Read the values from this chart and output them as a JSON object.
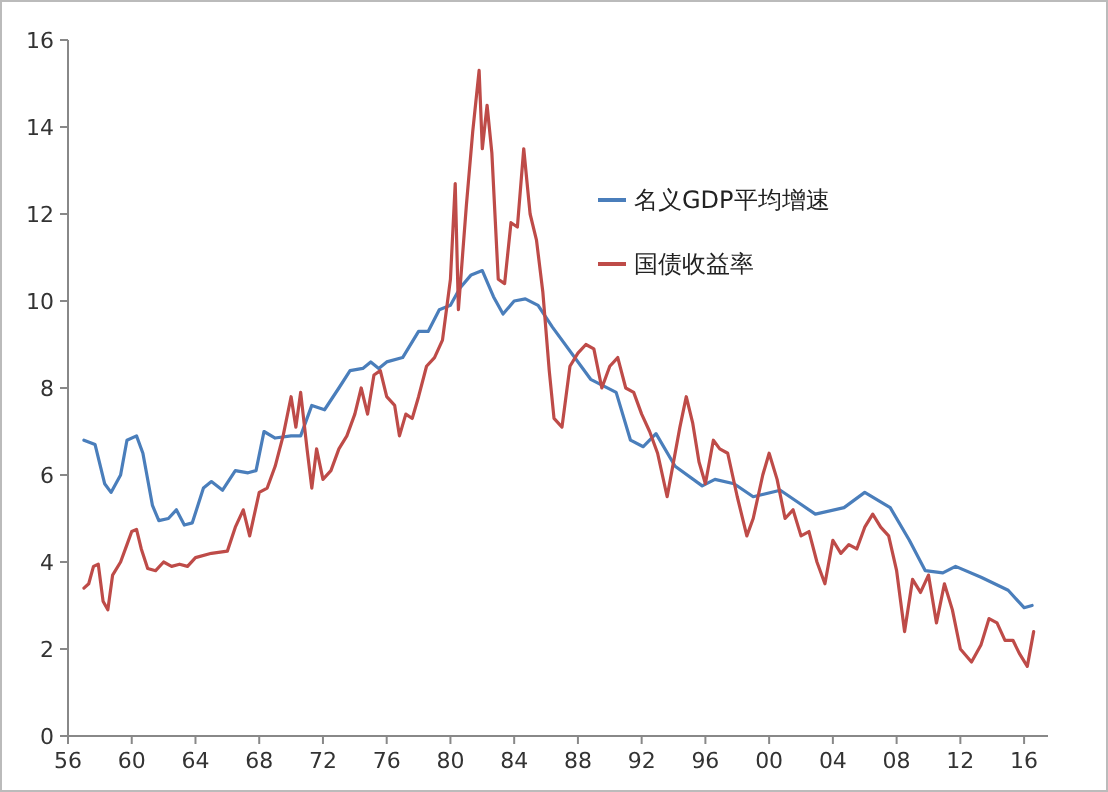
{
  "chart_data": {
    "type": "line",
    "xlim": [
      1956,
      2017.5
    ],
    "ylim": [
      0,
      16
    ],
    "yticks": [
      0,
      2,
      4,
      6,
      8,
      10,
      12,
      14,
      16
    ],
    "xticks": [
      {
        "value": 1956,
        "label": "56"
      },
      {
        "value": 1960,
        "label": "60"
      },
      {
        "value": 1964,
        "label": "64"
      },
      {
        "value": 1968,
        "label": "68"
      },
      {
        "value": 1972,
        "label": "72"
      },
      {
        "value": 1976,
        "label": "76"
      },
      {
        "value": 1980,
        "label": "80"
      },
      {
        "value": 1984,
        "label": "84"
      },
      {
        "value": 1988,
        "label": "88"
      },
      {
        "value": 1992,
        "label": "92"
      },
      {
        "value": 1996,
        "label": "96"
      },
      {
        "value": 2000,
        "label": "00"
      },
      {
        "value": 2004,
        "label": "04"
      },
      {
        "value": 2008,
        "label": "08"
      },
      {
        "value": 2012,
        "label": "12"
      },
      {
        "value": 2016,
        "label": "16"
      }
    ],
    "grid": false,
    "legend": "top right",
    "marker": "none",
    "line_style": "solid",
    "series": [
      {
        "name": "名义GDP平均增速",
        "color": "#4a7ebb",
        "x": [
          1957,
          1957.7,
          1958.3,
          1958.7,
          1959.3,
          1959.7,
          1960.3,
          1960.7,
          1961.3,
          1961.7,
          1962.3,
          1962.8,
          1963.3,
          1963.8,
          1964.5,
          1965,
          1965.7,
          1966.5,
          1967.3,
          1967.8,
          1968.3,
          1969,
          1970,
          1970.6,
          1971.3,
          1972.1,
          1973,
          1973.7,
          1974.5,
          1975,
          1975.5,
          1976,
          1977,
          1978,
          1978.6,
          1979.3,
          1980,
          1980.6,
          1981.3,
          1982,
          1982.7,
          1983.3,
          1984,
          1984.7,
          1985.5,
          1986.4,
          1988.8,
          1990.4,
          1991.3,
          1992.1,
          1992.9,
          1994.1,
          1995.8,
          1996.6,
          1997.8,
          1999,
          2000.7,
          2001.9,
          2002.9,
          2004.7,
          2006,
          2007.6,
          2008.8,
          2009.8,
          2010.9,
          2011.7,
          2013.3,
          2015,
          2016,
          2016.5
        ],
        "values": [
          6.8,
          6.7,
          5.8,
          5.6,
          6.0,
          6.8,
          6.9,
          6.5,
          5.3,
          4.95,
          5.0,
          5.2,
          4.85,
          4.9,
          5.7,
          5.85,
          5.65,
          6.1,
          6.05,
          6.1,
          7.0,
          6.85,
          6.9,
          6.9,
          7.6,
          7.5,
          8.0,
          8.4,
          8.45,
          8.6,
          8.45,
          8.6,
          8.7,
          9.3,
          9.3,
          9.8,
          9.9,
          10.3,
          10.6,
          10.7,
          10.1,
          9.7,
          10.0,
          10.05,
          9.9,
          9.4,
          8.2,
          7.9,
          6.8,
          6.65,
          6.95,
          6.2,
          5.75,
          5.9,
          5.8,
          5.5,
          5.65,
          5.35,
          5.1,
          5.25,
          5.6,
          5.25,
          4.5,
          3.8,
          3.75,
          3.9,
          3.65,
          3.35,
          2.95,
          3.0
        ]
      },
      {
        "name": "国债收益率",
        "color": "#be4b48",
        "x": [
          1957,
          1957.3,
          1957.6,
          1957.9,
          1958.2,
          1958.5,
          1958.8,
          1959.3,
          1959.7,
          1960,
          1960.3,
          1960.6,
          1961,
          1961.5,
          1962,
          1962.5,
          1963,
          1963.5,
          1964,
          1965,
          1966,
          1966.5,
          1967,
          1967.4,
          1968,
          1968.5,
          1969,
          1969.5,
          1970,
          1970.3,
          1970.6,
          1971,
          1971.3,
          1971.6,
          1972,
          1972.5,
          1973,
          1973.5,
          1974,
          1974.4,
          1974.8,
          1975.2,
          1975.6,
          1976,
          1976.5,
          1976.8,
          1977.2,
          1977.6,
          1978,
          1978.5,
          1979,
          1979.5,
          1980,
          1980.3,
          1980.5,
          1981,
          1981.4,
          1981.8,
          1982,
          1982.3,
          1982.6,
          1983,
          1983.4,
          1983.8,
          1984.2,
          1984.6,
          1985,
          1985.4,
          1985.8,
          1986.2,
          1986.5,
          1987,
          1987.5,
          1988,
          1988.5,
          1989,
          1989.5,
          1990,
          1990.5,
          1991,
          1991.5,
          1992,
          1992.5,
          1993,
          1993.6,
          1994.4,
          1994.8,
          1995.2,
          1995.6,
          1996,
          1996.5,
          1996.9,
          1997.4,
          1998,
          1998.6,
          1999,
          1999.6,
          2000,
          2000.5,
          2001,
          2001.5,
          2002,
          2002.5,
          2003,
          2003.5,
          2004,
          2004.5,
          2005,
          2005.5,
          2006,
          2006.5,
          2007,
          2007.5,
          2008,
          2008.5,
          2009,
          2009.5,
          2010,
          2010.5,
          2011,
          2011.5,
          2012,
          2012.7,
          2013.3,
          2013.8,
          2014.3,
          2014.8,
          2015.3,
          2015.7,
          2016.2,
          2016.6
        ],
        "values": [
          3.4,
          3.5,
          3.9,
          3.95,
          3.1,
          2.9,
          3.7,
          4.0,
          4.4,
          4.7,
          4.75,
          4.3,
          3.85,
          3.8,
          4.0,
          3.9,
          3.95,
          3.9,
          4.1,
          4.2,
          4.25,
          4.8,
          5.2,
          4.6,
          5.6,
          5.7,
          6.2,
          6.9,
          7.8,
          7.1,
          7.9,
          6.6,
          5.7,
          6.6,
          5.9,
          6.1,
          6.6,
          6.9,
          7.4,
          8.0,
          7.4,
          8.3,
          8.4,
          7.8,
          7.6,
          6.9,
          7.4,
          7.3,
          7.8,
          8.5,
          8.7,
          9.1,
          10.5,
          12.7,
          9.8,
          12.2,
          13.9,
          15.3,
          13.5,
          14.5,
          13.4,
          10.5,
          10.4,
          11.8,
          11.7,
          13.5,
          12.0,
          11.4,
          10.2,
          8.4,
          7.3,
          7.1,
          8.5,
          8.8,
          9.0,
          8.9,
          8.0,
          8.5,
          8.7,
          8.0,
          7.9,
          7.4,
          7.0,
          6.5,
          5.5,
          7.1,
          7.8,
          7.2,
          6.3,
          5.8,
          6.8,
          6.6,
          6.5,
          5.5,
          4.6,
          5.0,
          6.0,
          6.5,
          5.9,
          5.0,
          5.2,
          4.6,
          4.7,
          4.0,
          3.5,
          4.5,
          4.2,
          4.4,
          4.3,
          4.8,
          5.1,
          4.8,
          4.6,
          3.8,
          2.4,
          3.6,
          3.3,
          3.7,
          2.6,
          3.5,
          2.9,
          2.0,
          1.7,
          2.1,
          2.7,
          2.6,
          2.2,
          2.2,
          1.9,
          1.6,
          2.4
        ]
      }
    ]
  }
}
